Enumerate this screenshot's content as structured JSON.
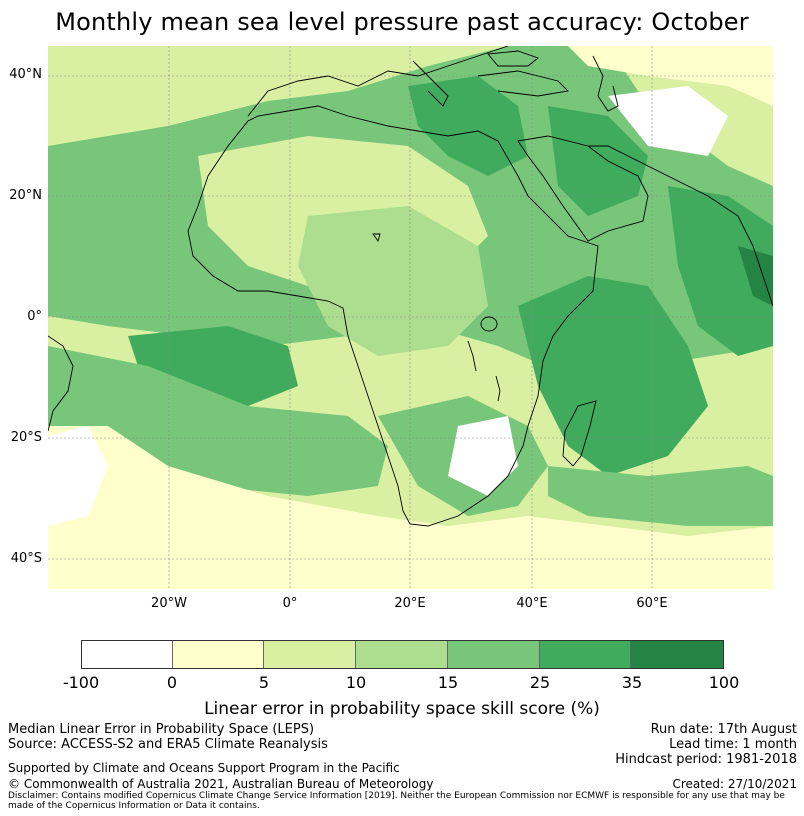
{
  "title": "Monthly mean sea level pressure past accuracy: October",
  "map": {
    "lat_labels": [
      "40°N",
      "20°N",
      "0°",
      "20°S",
      "40°S"
    ],
    "lon_labels": [
      "20°W",
      "0°",
      "20°E",
      "40°E",
      "60°E"
    ],
    "palette": {
      "white": "#ffffff",
      "pale_yellow": "#ffffcc",
      "yellow_green": "#d9f0a3",
      "light_green": "#addd8e",
      "mid_green": "#78c679",
      "green": "#41ab5d",
      "dark_green": "#238443",
      "coastline": "#000000",
      "grid": "#888888"
    }
  },
  "colorbar": {
    "ticks": [
      "-100",
      "0",
      "5",
      "10",
      "15",
      "25",
      "35",
      "100"
    ],
    "colors": [
      "#ffffff",
      "#ffffcc",
      "#d9f0a3",
      "#addd8e",
      "#78c679",
      "#41ab5d",
      "#238443"
    ],
    "label": "Linear error in probability space skill score (%)"
  },
  "footer": {
    "left_line1": "Median Linear Error in Probability Space (LEPS)",
    "left_line2": "Source: ACCESS-S2 and ERA5 Climate Reanalysis",
    "right_line1": "Run date: 17th August",
    "right_line2": "Lead time: 1 month",
    "right_line3": "Hindcast period: 1981-2018",
    "supported": "Supported by Climate and Oceans Support Program in the Pacific",
    "copyright": "© Commonwealth of Australia 2021, Australian Bureau of Meteorology",
    "created": "Created: 27/10/2021",
    "disclaimer": "Disclaimer: Contains modified Copernicus Climate Change Service Information [2019]. Neither the European Commission nor ECMWF is responsible for any use that may be made of the Copernicus Information or Data it contains."
  }
}
